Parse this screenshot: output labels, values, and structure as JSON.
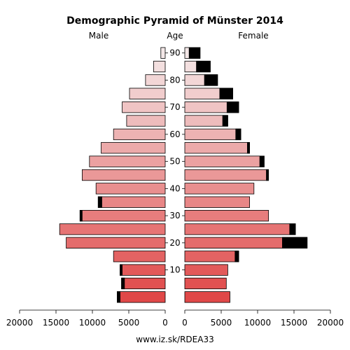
{
  "chart_data": {
    "type": "bar",
    "orientation": "horizontal-pyramid",
    "title": "Demographic Pyramid of Münster 2014",
    "left_label": "Male",
    "center_label": "Age",
    "right_label": "Female",
    "source": "www.iz.sk/RDEA33",
    "age_ticks": [
      "10",
      "20",
      "30",
      "40",
      "50",
      "60",
      "70",
      "80",
      "90"
    ],
    "x_ticks": [
      "20000",
      "15000",
      "10000",
      "5000",
      "0",
      "0",
      "5000",
      "10000",
      "15000",
      "20000"
    ],
    "xlim": [
      0,
      20000
    ],
    "age_groups": [
      "0-4",
      "5-9",
      "10-14",
      "15-19",
      "20-24",
      "25-29",
      "30-34",
      "35-39",
      "40-44",
      "45-49",
      "50-54",
      "55-59",
      "60-64",
      "65-69",
      "70-74",
      "75-79",
      "80-84",
      "85-89",
      "90+"
    ],
    "series": [
      {
        "name": "Male",
        "values": [
          6600,
          6000,
          6200,
          7100,
          13600,
          14500,
          11700,
          9200,
          9500,
          11400,
          10400,
          8800,
          7100,
          5300,
          5900,
          4900,
          2700,
          1600,
          600
        ],
        "dark_values": [
          400,
          400,
          300,
          0,
          0,
          0,
          300,
          500,
          0,
          0,
          0,
          0,
          0,
          0,
          0,
          0,
          0,
          0,
          0
        ]
      },
      {
        "name": "Female",
        "values": [
          6200,
          5700,
          5900,
          7400,
          16800,
          15200,
          11500,
          8900,
          9500,
          11500,
          10900,
          8900,
          7700,
          5900,
          7400,
          6600,
          4500,
          3500,
          2100
        ],
        "dark_values": [
          0,
          0,
          0,
          500,
          3400,
          800,
          0,
          0,
          0,
          300,
          600,
          300,
          700,
          700,
          1600,
          1800,
          1800,
          1900,
          1500
        ]
      }
    ],
    "colors": {
      "bar_low": "#e04848",
      "bar_high": "#f4e8e8",
      "dark": "#000000",
      "stroke": "#000000"
    },
    "grid": false,
    "legend": "none"
  }
}
